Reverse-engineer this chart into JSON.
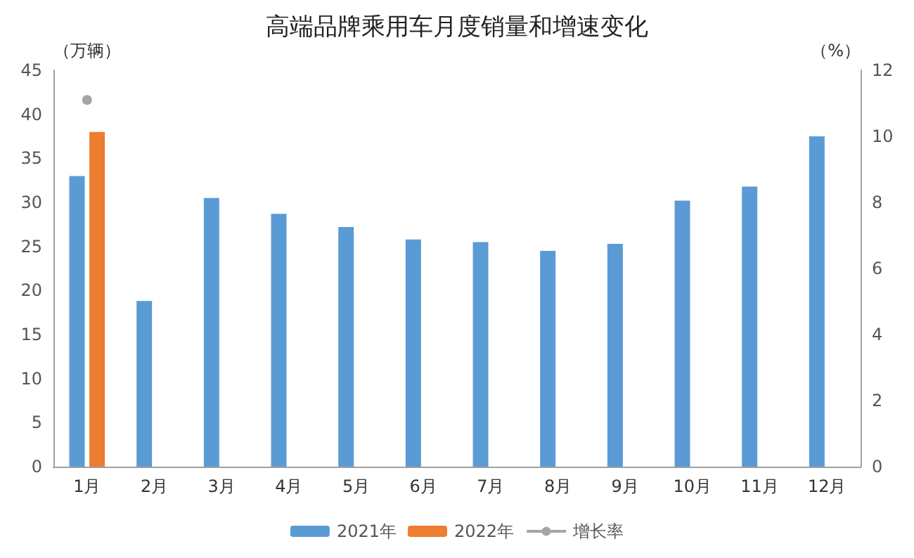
{
  "chart_data": {
    "type": "bar",
    "title": "高端品牌乘用车月度销量和增速变化",
    "ylabel": "（万辆）",
    "y2label": "（%）",
    "categories": [
      "1月",
      "2月",
      "3月",
      "4月",
      "5月",
      "6月",
      "7月",
      "8月",
      "9月",
      "10月",
      "11月",
      "12月"
    ],
    "series": [
      {
        "name": "2021年",
        "color": "#5b9bd5",
        "values": [
          33,
          18.8,
          30.5,
          28.7,
          27.2,
          25.8,
          25.5,
          24.5,
          25.3,
          30.2,
          31.8,
          37.5
        ]
      },
      {
        "name": "2022年",
        "color": "#ed7d31",
        "values": [
          38,
          null,
          null,
          null,
          null,
          null,
          null,
          null,
          null,
          null,
          null,
          null
        ]
      },
      {
        "name": "增长率",
        "type": "line",
        "axis": "y2",
        "color": "#a5a5a5",
        "values": [
          11.1,
          null,
          null,
          null,
          null,
          null,
          null,
          null,
          null,
          null,
          null,
          null
        ]
      }
    ],
    "ylim": [
      0,
      45
    ],
    "yticks": [
      0,
      5,
      10,
      15,
      20,
      25,
      30,
      35,
      40,
      45
    ],
    "y2lim": [
      0,
      12
    ],
    "y2ticks": [
      0,
      2,
      4,
      6,
      8,
      10,
      12
    ],
    "grid": false,
    "legend": "bottom",
    "marker": "circle"
  }
}
